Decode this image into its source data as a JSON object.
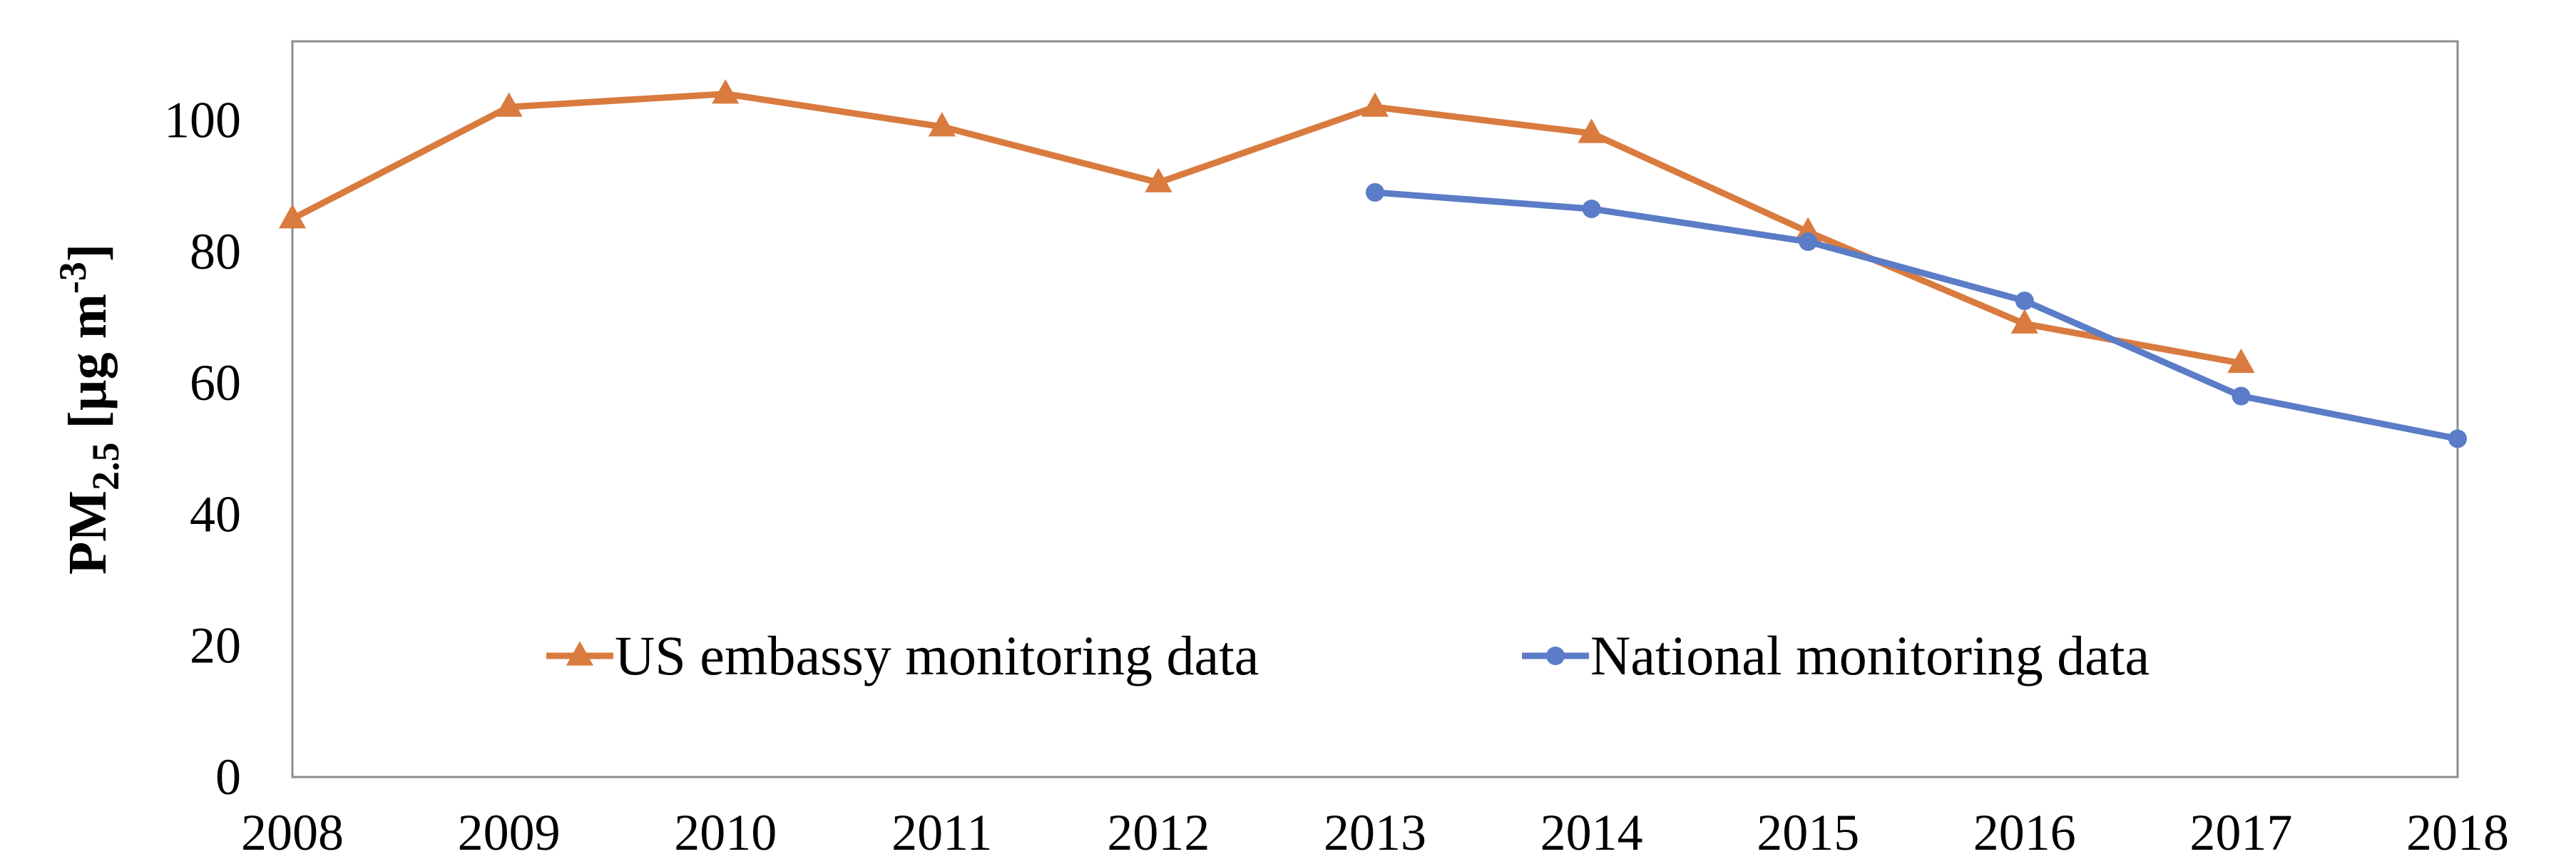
{
  "chart_data": {
    "type": "line",
    "title": "",
    "xlabel": "",
    "ylabel": {
      "main": "PM",
      "subscript": "2.5",
      "unit_prefix": " [µg m",
      "unit_superscript": "-3",
      "unit_suffix": "]"
    },
    "x_ticks": [
      "2008",
      "2009",
      "2010",
      "2011",
      "2012",
      "2013",
      "2014",
      "2015",
      "2016",
      "2017",
      "2018"
    ],
    "y_ticks": [
      "0",
      "20",
      "40",
      "60",
      "80",
      "100"
    ],
    "xlim": [
      2008,
      2018
    ],
    "ylim": [
      0,
      112
    ],
    "grid": false,
    "legend_position": "bottom-center inside",
    "series": [
      {
        "name": "US embassy monitoring data",
        "color": "#D97B3F",
        "marker": "triangle",
        "x": [
          2008,
          2009,
          2010,
          2011,
          2012,
          2013,
          2014,
          2015,
          2016,
          2017
        ],
        "values": [
          85,
          102,
          104,
          99,
          90.5,
          102,
          98,
          83,
          69,
          63
        ]
      },
      {
        "name": "National monitoring data",
        "color": "#5B7CC6",
        "marker": "circle",
        "x": [
          2013,
          2014,
          2015,
          2016,
          2017,
          2018
        ],
        "values": [
          89,
          86.5,
          81.5,
          72.5,
          58,
          51.5
        ]
      }
    ]
  }
}
